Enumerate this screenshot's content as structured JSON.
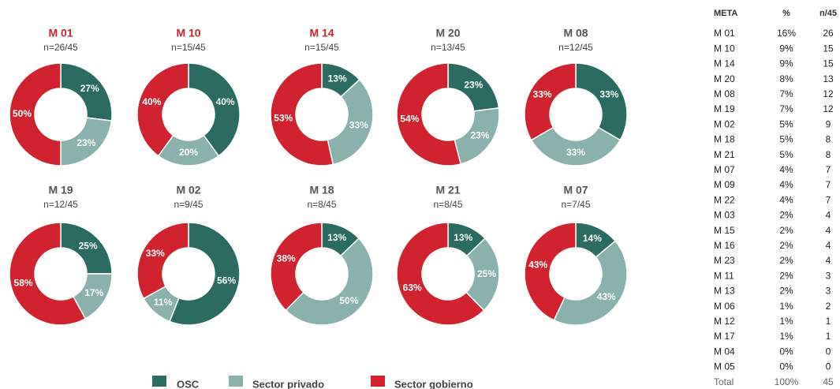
{
  "chart_data": [
    {
      "type": "donut",
      "title": "M 01",
      "subtitle": "n=26/45",
      "title_color": "#c8262f",
      "categories": [
        "OSC",
        "Sector privado",
        "Sector gobierno"
      ],
      "colors": [
        "#2b6b61",
        "#8ab1ac",
        "#d0232f"
      ],
      "values": [
        27,
        23,
        50
      ],
      "value_labels": [
        "27%",
        "23%",
        "50%"
      ]
    },
    {
      "type": "donut",
      "title": "M 10",
      "subtitle": "n=15/45",
      "title_color": "#c8262f",
      "categories": [
        "OSC",
        "Sector privado",
        "Sector gobierno"
      ],
      "colors": [
        "#2b6b61",
        "#8ab1ac",
        "#d0232f"
      ],
      "values": [
        40,
        20,
        40
      ],
      "value_labels": [
        "40%",
        "20%",
        "40%"
      ]
    },
    {
      "type": "donut",
      "title": "M 14",
      "subtitle": "n=15/45",
      "title_color": "#c8262f",
      "categories": [
        "OSC",
        "Sector privado",
        "Sector gobierno"
      ],
      "colors": [
        "#2b6b61",
        "#8ab1ac",
        "#d0232f"
      ],
      "values": [
        13,
        33,
        53
      ],
      "value_labels": [
        "13%",
        "33%",
        "53%"
      ]
    },
    {
      "type": "donut",
      "title": "M 20",
      "subtitle": "n=13/45",
      "title_color": "#555555",
      "categories": [
        "OSC",
        "Sector privado",
        "Sector gobierno"
      ],
      "colors": [
        "#2b6b61",
        "#8ab1ac",
        "#d0232f"
      ],
      "values": [
        23,
        23,
        54
      ],
      "value_labels": [
        "23%",
        "23%",
        "54%"
      ]
    },
    {
      "type": "donut",
      "title": "M 08",
      "subtitle": "n=12/45",
      "title_color": "#555555",
      "categories": [
        "OSC",
        "Sector privado",
        "Sector gobierno"
      ],
      "colors": [
        "#2b6b61",
        "#8ab1ac",
        "#d0232f"
      ],
      "values": [
        33,
        33,
        33
      ],
      "value_labels": [
        "33%",
        "33%",
        "33%"
      ]
    },
    {
      "type": "donut",
      "title": "M 19",
      "subtitle": "n=12/45",
      "title_color": "#555555",
      "categories": [
        "OSC",
        "Sector privado",
        "Sector gobierno"
      ],
      "colors": [
        "#2b6b61",
        "#8ab1ac",
        "#d0232f"
      ],
      "values": [
        25,
        17,
        58
      ],
      "value_labels": [
        "25%",
        "17%",
        "58%"
      ]
    },
    {
      "type": "donut",
      "title": "M 02",
      "subtitle": "n=9/45",
      "title_color": "#555555",
      "categories": [
        "OSC",
        "Sector privado",
        "Sector gobierno"
      ],
      "colors": [
        "#2b6b61",
        "#8ab1ac",
        "#d0232f"
      ],
      "values": [
        56,
        11,
        33
      ],
      "value_labels": [
        "56%",
        "11%",
        "33%"
      ]
    },
    {
      "type": "donut",
      "title": "M 18",
      "subtitle": "n=8/45",
      "title_color": "#555555",
      "categories": [
        "OSC",
        "Sector privado",
        "Sector gobierno"
      ],
      "colors": [
        "#2b6b61",
        "#8ab1ac",
        "#d0232f"
      ],
      "values": [
        13,
        50,
        38
      ],
      "value_labels": [
        "13%",
        "50%",
        "38%"
      ]
    },
    {
      "type": "donut",
      "title": "M 21",
      "subtitle": "n=8/45",
      "title_color": "#555555",
      "categories": [
        "OSC",
        "Sector privado",
        "Sector gobierno"
      ],
      "colors": [
        "#2b6b61",
        "#8ab1ac",
        "#d0232f"
      ],
      "values": [
        13,
        25,
        63
      ],
      "value_labels": [
        "13%",
        "25%",
        "63%"
      ]
    },
    {
      "type": "donut",
      "title": "M 07",
      "subtitle": "n=7/45",
      "title_color": "#555555",
      "categories": [
        "OSC",
        "Sector privado",
        "Sector gobierno"
      ],
      "colors": [
        "#2b6b61",
        "#8ab1ac",
        "#d0232f"
      ],
      "values": [
        14,
        43,
        43
      ],
      "value_labels": [
        "14%",
        "43%",
        "43%"
      ]
    }
  ],
  "table": {
    "header": [
      "META",
      "%",
      "n/45"
    ],
    "rows": [
      [
        "M 01",
        "16%",
        "26"
      ],
      [
        "M 10",
        "9%",
        "15"
      ],
      [
        "M 14",
        "9%",
        "15"
      ],
      [
        "M 20",
        "8%",
        "13"
      ],
      [
        "M 08",
        "7%",
        "12"
      ],
      [
        "M 19",
        "7%",
        "12"
      ],
      [
        "M 02",
        "5%",
        "9"
      ],
      [
        "M 18",
        "5%",
        "8"
      ],
      [
        "M 21",
        "5%",
        "8"
      ],
      [
        "M 07",
        "4%",
        "7"
      ],
      [
        "M 09",
        "4%",
        "7"
      ],
      [
        "M 22",
        "4%",
        "7"
      ],
      [
        "M 03",
        "2%",
        "4"
      ],
      [
        "M 15",
        "2%",
        "4"
      ],
      [
        "M 16",
        "2%",
        "4"
      ],
      [
        "M 23",
        "2%",
        "4"
      ],
      [
        "M 11",
        "2%",
        "3"
      ],
      [
        "M 13",
        "2%",
        "3"
      ],
      [
        "M 06",
        "1%",
        "2"
      ],
      [
        "M 12",
        "1%",
        "1"
      ],
      [
        "M 17",
        "1%",
        "1"
      ],
      [
        "M 04",
        "0%",
        "0"
      ],
      [
        "M 05",
        "0%",
        "0"
      ]
    ],
    "total": [
      "Total",
      "100%",
      "45"
    ]
  }
}
